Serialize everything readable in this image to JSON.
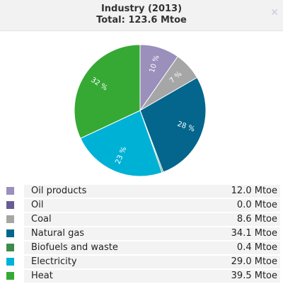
{
  "header": {
    "title": "Industry (2013)",
    "subtitle": "Total: 123.6 Mtoe",
    "close_icon": "close-icon"
  },
  "chart_data": {
    "type": "pie",
    "title": "Industry (2013)",
    "subtitle": "Total: 123.6 Mtoe",
    "unit": "Mtoe",
    "categories": [
      "Oil products",
      "Oil",
      "Coal",
      "Natural gas",
      "Biofuels and waste",
      "Electricity",
      "Heat"
    ],
    "values": [
      12.0,
      0.0,
      8.6,
      34.1,
      0.4,
      29.0,
      39.5
    ],
    "value_labels": [
      "12.0 Mtoe",
      "0.0 Mtoe",
      "8.6 Mtoe",
      "34.1 Mtoe",
      "0.4 Mtoe",
      "29.0 Mtoe",
      "39.5 Mtoe"
    ],
    "slice_labels": [
      "10 %",
      "",
      "7 %",
      "28 %",
      "",
      "23 %",
      "32 %"
    ],
    "colors": [
      "#9b8fbc",
      "#6a5c93",
      "#a6a6a6",
      "#04668c",
      "#3c8c4c",
      "#00b1d6",
      "#36a935"
    ],
    "legend_position": "bottom"
  }
}
